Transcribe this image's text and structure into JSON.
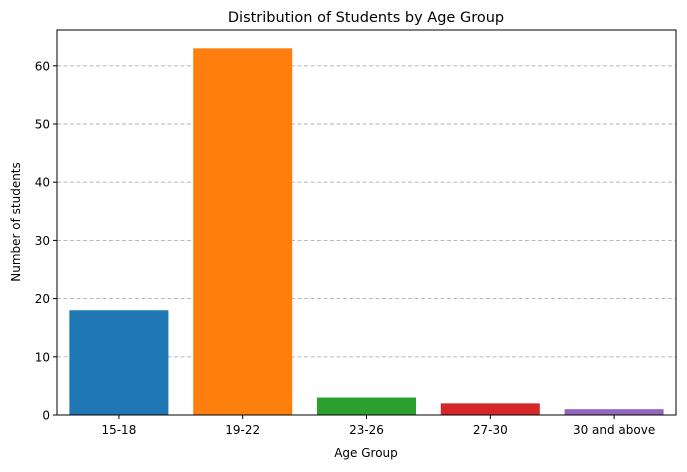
{
  "chart_data": {
    "type": "bar",
    "title": "Distribution of Students by Age Group",
    "xlabel": "Age Group",
    "ylabel": "Number of students",
    "categories": [
      "15-18",
      "19-22",
      "23-26",
      "27-30",
      "30 and above"
    ],
    "values": [
      18,
      63,
      3,
      2,
      1
    ],
    "colors": [
      "#1f77b4",
      "#ff7f0e",
      "#2ca02c",
      "#d62728",
      "#9467bd"
    ],
    "ylim": [
      0,
      66.15
    ],
    "yticks": [
      0,
      10,
      20,
      30,
      40,
      50,
      60
    ],
    "grid": "y-dashed",
    "legend": "none"
  }
}
